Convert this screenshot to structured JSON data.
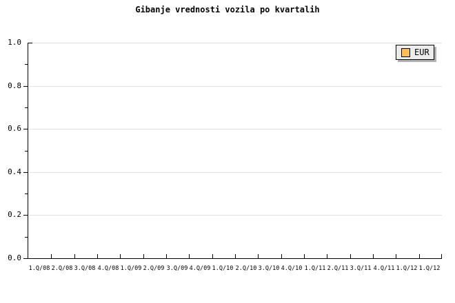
{
  "title": "Gibanje vrednosti vozila po kvartalih",
  "legend": {
    "label": "EUR",
    "swatch_color": "#FBBE5C"
  },
  "axes": {
    "y_labels": [
      "1.0",
      "0.8",
      "0.6",
      "0.4",
      "0.2",
      "0.0"
    ],
    "x_labels": [
      "1.Q/08",
      "2.Q/08",
      "3.Q/08",
      "4.Q/08",
      "1.Q/09",
      "2.Q/09",
      "3.Q/09",
      "4.Q/09",
      "1.Q/10",
      "2.Q/10",
      "3.Q/10",
      "4.Q/10",
      "1.Q/11",
      "2.Q/11",
      "3.Q/11",
      "4.Q/11",
      "1.Q/12",
      "1.Q/12"
    ]
  },
  "colors": {
    "background": "#FFFFFF",
    "axis": "#000000",
    "grid": "#E0E0E0",
    "text": "#000000",
    "legend_bg": "#ECECEC",
    "legend_shadow": "#B0B0B0",
    "series_eur": "#FBBE5C"
  },
  "chart_data": {
    "type": "line",
    "title": "Gibanje vrednosti vozila po kvartalih",
    "categories": [
      "1.Q/08",
      "2.Q/08",
      "3.Q/08",
      "4.Q/08",
      "1.Q/09",
      "2.Q/09",
      "3.Q/09",
      "4.Q/09",
      "1.Q/10",
      "2.Q/10",
      "3.Q/10",
      "4.Q/10",
      "1.Q/11",
      "2.Q/11",
      "3.Q/11",
      "4.Q/11",
      "1.Q/12",
      "1.Q/12"
    ],
    "series": [
      {
        "name": "EUR",
        "values": []
      }
    ],
    "xlabel": "",
    "ylabel": "",
    "ylim": [
      0.0,
      1.0
    ],
    "y_major_ticks": [
      0.0,
      0.2,
      0.4,
      0.6,
      0.8,
      1.0
    ],
    "y_minor_tick_step": 0.1,
    "grid": "horizontal-major",
    "legend_position": "top-right",
    "plot_area_empty": true
  }
}
